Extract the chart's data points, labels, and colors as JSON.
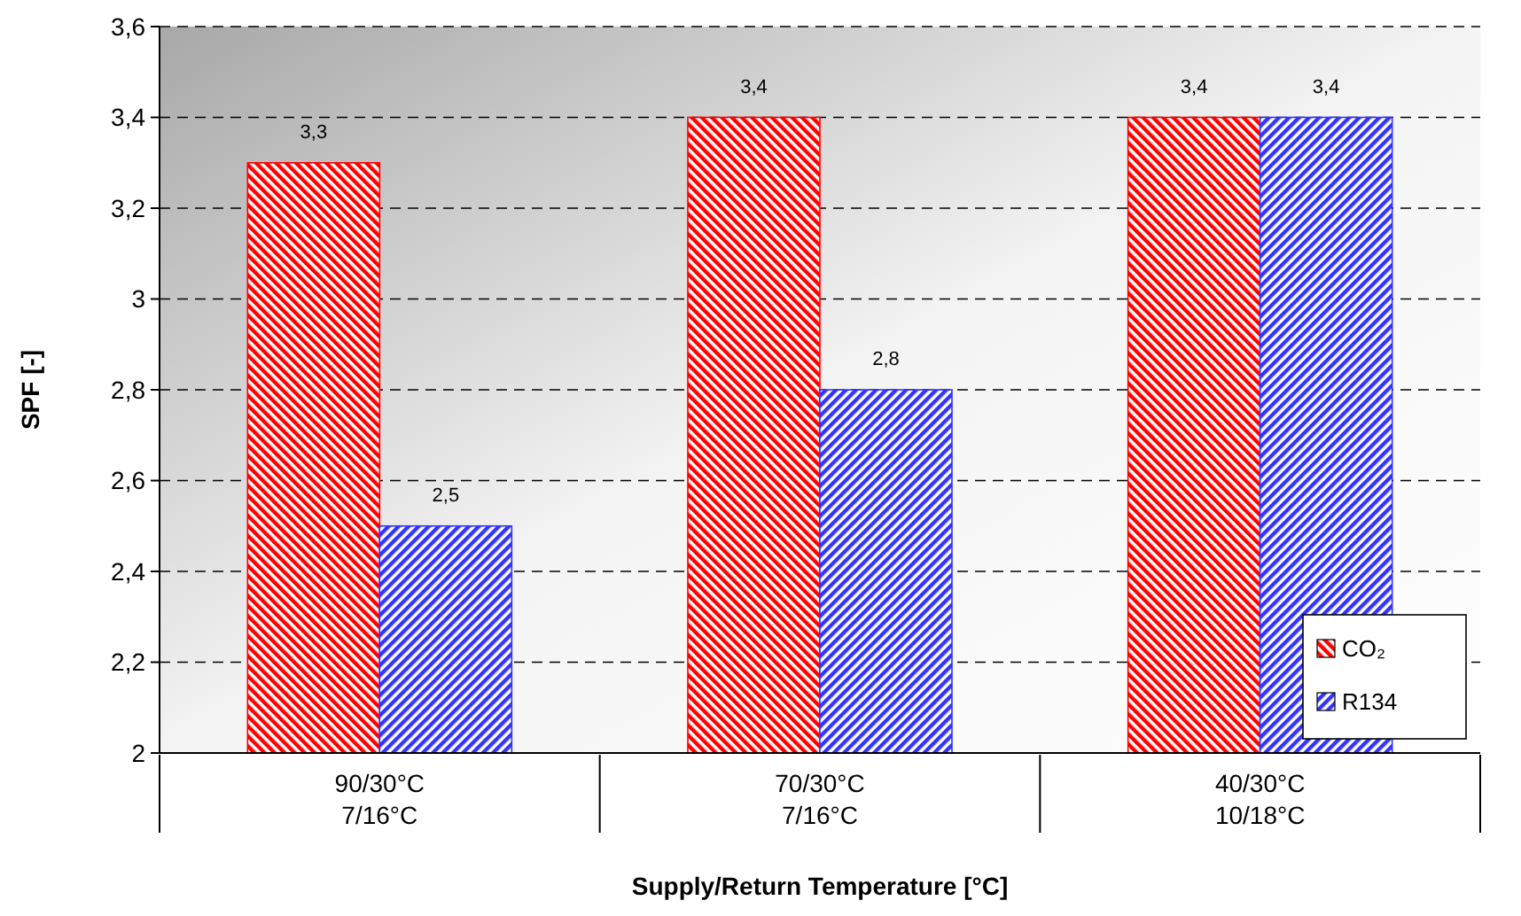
{
  "chart_data": {
    "type": "bar",
    "xlabel": "Supply/Return Temperature [°C]",
    "ylabel": "SPF [-]",
    "categories": [
      "90/30°C\n7/16°C",
      "70/30°C\n7/16°C",
      "40/30°C\n10/18°C"
    ],
    "series": [
      {
        "name": "CO₂",
        "color": "#ff0000",
        "values": [
          3.3,
          3.4,
          3.4
        ],
        "value_labels": [
          "3,3",
          "3,4",
          "3,4"
        ]
      },
      {
        "name": "R134",
        "color": "#3333ff",
        "values": [
          2.5,
          2.8,
          3.4
        ],
        "value_labels": [
          "2,5",
          "2,8",
          "3,4"
        ]
      }
    ],
    "ylim": [
      2,
      3.6
    ],
    "yticks": [
      2,
      {
        "value": 2.2,
        "label": "2,2"
      },
      {
        "value": 2.4,
        "label": "2,4"
      },
      {
        "value": 2.6,
        "label": "2,6"
      },
      {
        "value": 2.8,
        "label": "2,8"
      },
      3,
      {
        "value": 3.2,
        "label": "3,2"
      },
      {
        "value": 3.4,
        "label": "3,4"
      },
      {
        "value": 3.6,
        "label": "3,6"
      }
    ],
    "grid": "y",
    "legend": "bottom right"
  }
}
